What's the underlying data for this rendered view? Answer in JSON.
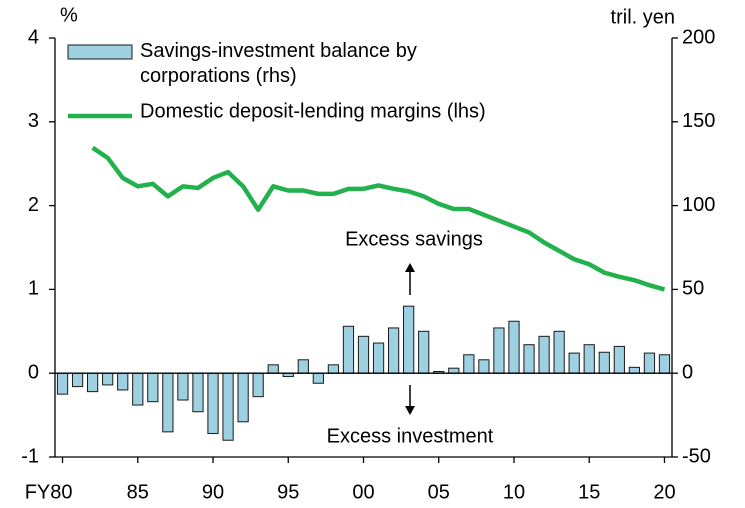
{
  "chart_data": {
    "type": "bar",
    "categories": [
      "FY80",
      null,
      null,
      null,
      null,
      "85",
      null,
      null,
      null,
      null,
      "90",
      null,
      null,
      null,
      null,
      "95",
      null,
      null,
      null,
      null,
      "00",
      null,
      null,
      null,
      null,
      "05",
      null,
      null,
      null,
      null,
      "10",
      null,
      null,
      null,
      null,
      "15",
      null,
      null,
      null,
      null,
      "20"
    ],
    "series": [
      {
        "name": "Savings-investment balance by corporations (rhs)",
        "type": "bar",
        "axis": "y2",
        "color": "#9dd0e0",
        "values": [
          -12.5,
          -8,
          -11,
          -7,
          -10,
          -19,
          -17,
          -35,
          -16,
          -23,
          -36,
          -40,
          -29,
          -14,
          5,
          -2,
          8,
          -6,
          5,
          28,
          22,
          18,
          27,
          40,
          25,
          1,
          3,
          11,
          8,
          27,
          31,
          17,
          22,
          25,
          12,
          17,
          12.5,
          16,
          3.5,
          12,
          11
        ]
      },
      {
        "name": "Domestic deposit-lending margins (lhs)",
        "type": "line",
        "axis": "y",
        "color": "#22b14c",
        "values": [
          null,
          null,
          2.69,
          2.57,
          2.33,
          2.23,
          2.26,
          2.11,
          2.23,
          2.21,
          2.33,
          2.4,
          2.23,
          1.95,
          2.23,
          2.18,
          2.18,
          2.14,
          2.14,
          2.2,
          2.2,
          2.24,
          2.2,
          2.17,
          2.11,
          2.02,
          1.96,
          1.96,
          1.89,
          1.82,
          1.75,
          1.68,
          1.56,
          1.46,
          1.36,
          1.3,
          1.2,
          1.15,
          1.11,
          1.05,
          1.0
        ]
      }
    ],
    "y_label": "%",
    "y2_label": "tril. yen",
    "ylim": [
      -1,
      4
    ],
    "yticks": [
      -1,
      0,
      1,
      2,
      3,
      4
    ],
    "y2lim": [
      -50,
      200
    ],
    "y2ticks": [
      -50,
      0,
      50,
      100,
      150,
      200
    ],
    "annotations": [
      "Excess savings",
      "Excess investment"
    ],
    "legend": "top-left",
    "grid": false
  }
}
